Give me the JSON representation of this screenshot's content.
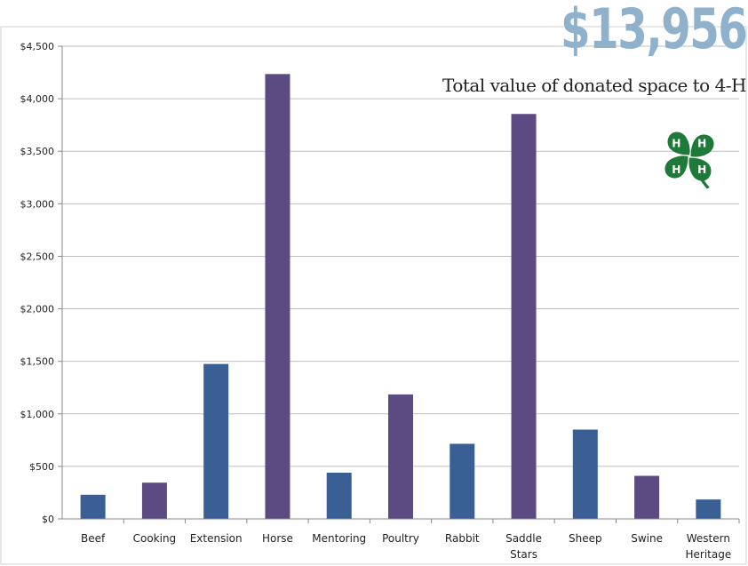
{
  "header": {
    "total_value": "$13,956",
    "caption": "Total value of donated space to 4-H"
  },
  "logo": {
    "name": "4-H clover",
    "color": "#1f7a3a"
  },
  "colors": {
    "blue": "#3a5f95",
    "purple": "#5c4a82",
    "grid": "#bfbfbf",
    "axis": "#888888"
  },
  "chart_data": {
    "type": "bar",
    "categories": [
      "Beef",
      "Cooking",
      "Extension",
      "Horse",
      "Mentoring",
      "Poultry",
      "Rabbit",
      "Saddle Stars",
      "Sheep",
      "Swine",
      "Western Heritage"
    ],
    "category_lines": [
      [
        "Beef"
      ],
      [
        "Cooking"
      ],
      [
        "Extension"
      ],
      [
        "Horse"
      ],
      [
        "Mentoring"
      ],
      [
        "Poultry"
      ],
      [
        "Rabbit"
      ],
      [
        "Saddle",
        "Stars"
      ],
      [
        "Sheep"
      ],
      [
        "Swine"
      ],
      [
        "Western",
        "Heritage"
      ]
    ],
    "values": [
      230,
      345,
      1475,
      4235,
      440,
      1185,
      715,
      3855,
      850,
      410,
      185
    ],
    "bar_colors": [
      "#3a5f95",
      "#5c4a82",
      "#3a5f95",
      "#5c4a82",
      "#3a5f95",
      "#5c4a82",
      "#3a5f95",
      "#5c4a82",
      "#3a5f95",
      "#5c4a82",
      "#3a5f95"
    ],
    "yticks": [
      "$0",
      "$500",
      "$1,000",
      "$1,500",
      "$2,000",
      "$2,500",
      "$3,000",
      "$3,500",
      "$4,000",
      "$4,500"
    ],
    "ytick_values": [
      0,
      500,
      1000,
      1500,
      2000,
      2500,
      3000,
      3500,
      4000,
      4500
    ],
    "ylim": [
      0,
      4500
    ],
    "grid": true
  }
}
